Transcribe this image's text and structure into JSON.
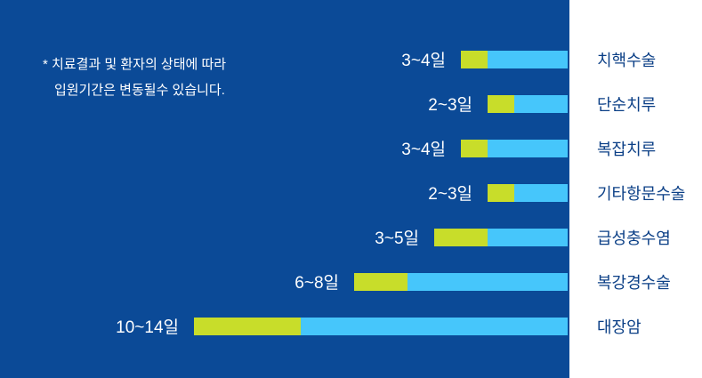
{
  "note": {
    "line1": "* 치료결과 및 환자의 상태에 따라",
    "line2": "입원기간은 변동될수 있습니다."
  },
  "colors": {
    "panel": "#0b4a97",
    "segment_min": "#c8dd2a",
    "segment_range": "#46c6fb",
    "category_text": "#0b3f86",
    "value_text": "#ffffff"
  },
  "chart_data": {
    "type": "bar",
    "orientation": "horizontal",
    "unit": "일",
    "categories": [
      "치핵수술",
      "단순치루",
      "복잡치루",
      "기타항문수술",
      "급성충수염",
      "복강경수술",
      "대장암"
    ],
    "labels": [
      "3~4일",
      "2~3일",
      "3~4일",
      "2~3일",
      "3~5일",
      "6~8일",
      "10~14일"
    ],
    "min": [
      3,
      2,
      3,
      2,
      3,
      6,
      10
    ],
    "max": [
      4,
      3,
      4,
      3,
      5,
      8,
      14
    ],
    "xlim": [
      0,
      14
    ],
    "grid": false,
    "legend": "none"
  }
}
